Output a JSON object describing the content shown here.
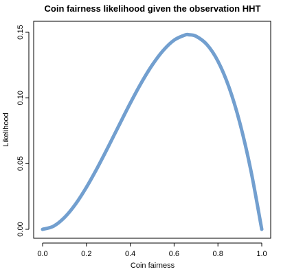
{
  "chart_data": {
    "type": "line",
    "title": "Coin fairness likelihood given the observation HHT",
    "xlabel": "Coin fairness",
    "ylabel": "Likelihood",
    "xlim": [
      0.0,
      1.0
    ],
    "ylim": [
      0.0,
      0.15
    ],
    "x_ticks": [
      0.0,
      0.2,
      0.4,
      0.6,
      0.8,
      1.0
    ],
    "x_tick_labels": [
      "0.0",
      "0.2",
      "0.4",
      "0.6",
      "0.8",
      "1.0"
    ],
    "y_ticks": [
      0.0,
      0.05,
      0.1,
      0.15
    ],
    "y_tick_labels": [
      "0.00",
      "0.05",
      "0.10",
      "0.15"
    ],
    "grid": false,
    "legend": "none",
    "series": [
      {
        "color": "#729fcf",
        "x": [
          0.0,
          0.05,
          0.1,
          0.15,
          0.2,
          0.25,
          0.3,
          0.35,
          0.4,
          0.45,
          0.5,
          0.55,
          0.6,
          0.65,
          0.6667,
          0.7,
          0.75,
          0.8,
          0.85,
          0.9,
          0.95,
          1.0
        ],
        "y": [
          0.0,
          0.0024,
          0.009,
          0.0191,
          0.032,
          0.0469,
          0.063,
          0.0796,
          0.096,
          0.1114,
          0.125,
          0.1361,
          0.144,
          0.1479,
          0.1481,
          0.147,
          0.1406,
          0.128,
          0.1084,
          0.081,
          0.0451,
          0.0
        ]
      }
    ]
  }
}
